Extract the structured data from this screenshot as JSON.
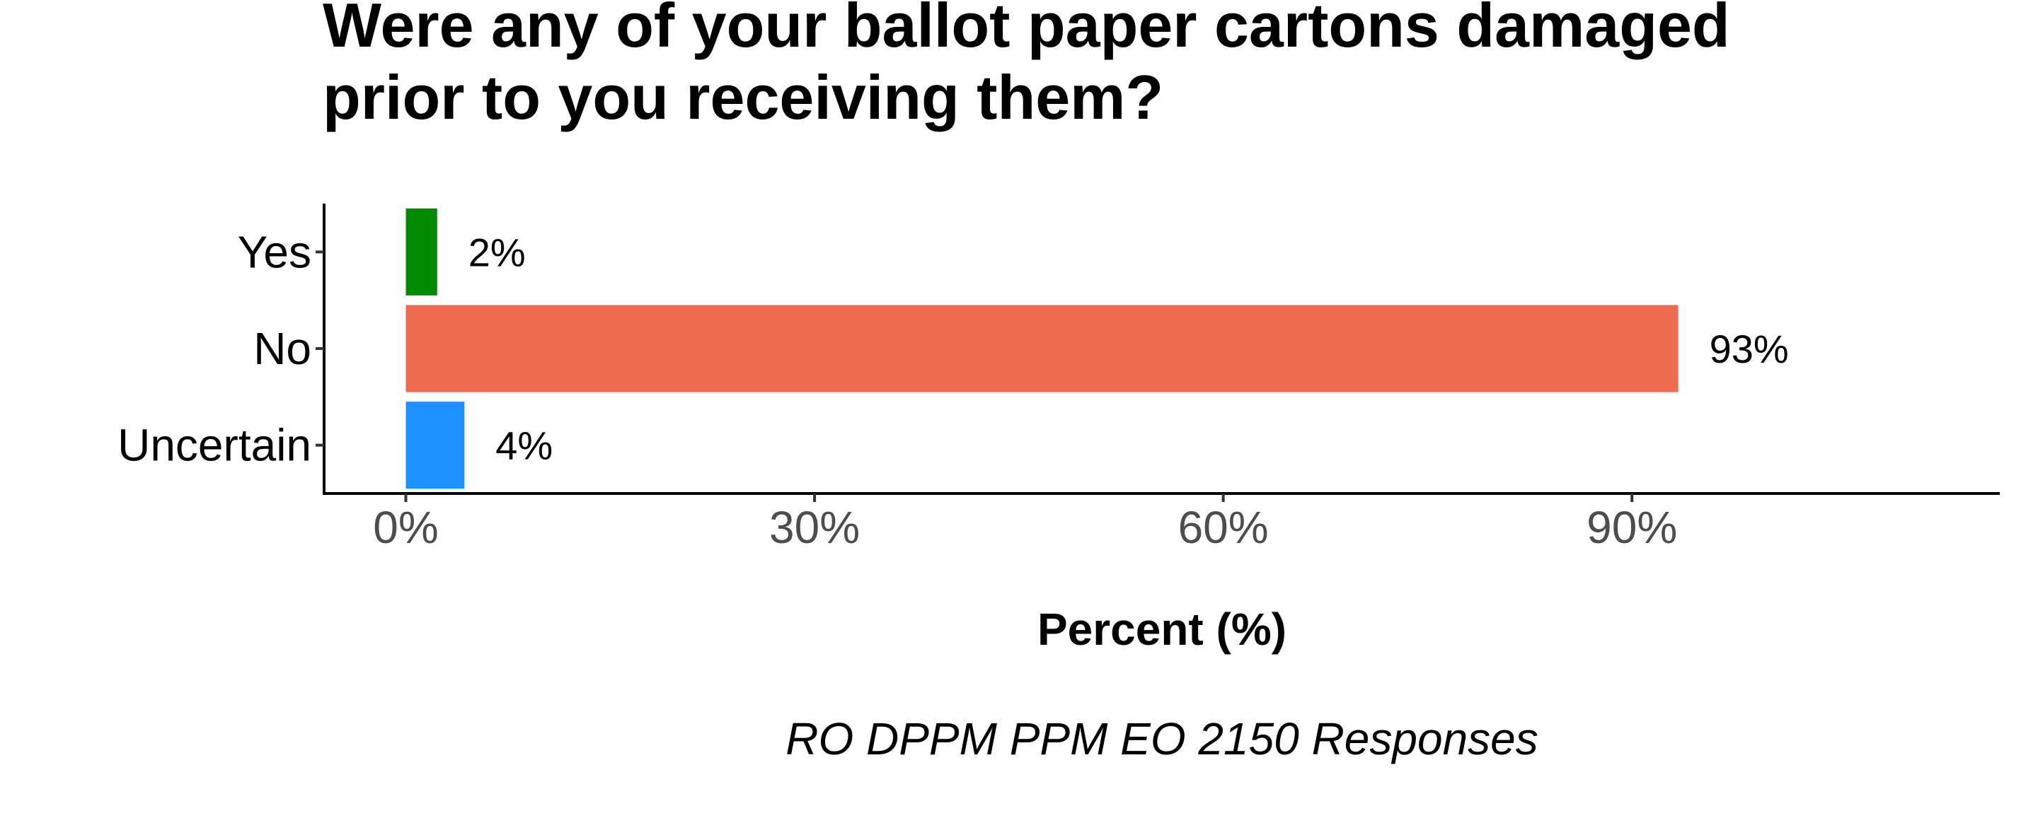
{
  "chart_data": {
    "type": "bar",
    "orientation": "horizontal",
    "title_lines": [
      "Were any of your ballot paper cartons damaged",
      "prior to you receiving them?"
    ],
    "categories": [
      "Yes",
      "No",
      "Uncertain"
    ],
    "values": [
      2.3,
      93.4,
      4.3
    ],
    "value_labels": [
      "2%",
      "93%",
      "4%"
    ],
    "colors": [
      "#008b00",
      "#ee6a50",
      "#1e90ff"
    ],
    "xlabel": "Percent (%)",
    "ylabel": "",
    "xlim": [
      -6,
      117
    ],
    "xticks": [
      0,
      30,
      60,
      90
    ],
    "xtick_labels": [
      "0%",
      "30%",
      "60%",
      "90%"
    ],
    "caption": "RO DPPM PPM EO 2150 Responses",
    "grid": false,
    "legend": "none"
  }
}
